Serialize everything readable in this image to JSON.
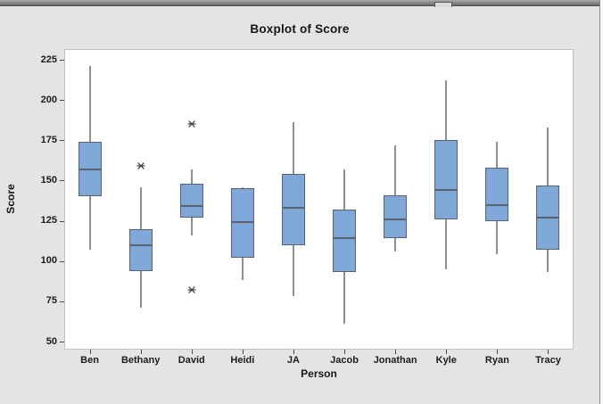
{
  "window": {
    "kind": "minitab-graph-window"
  },
  "colors": {
    "window_bg": "#e5e4e2",
    "plot_bg": "#ffffff",
    "plot_border": "#c3c3c3",
    "box_fill": "#7fa7d8",
    "box_border": "#57636e",
    "whisker": "#8f8f8f",
    "outlier": "#3f3f3f",
    "text": "#15161c"
  },
  "chart_data": {
    "type": "boxplot",
    "title": "Boxplot of Score",
    "xlabel": "Person",
    "ylabel": "Score",
    "grid": false,
    "legend": "none",
    "y_ticks": [
      225,
      200,
      175,
      150,
      125,
      100,
      75,
      50
    ],
    "ylim_visible": [
      45,
      232
    ],
    "categories": [
      "Ben",
      "Bethany",
      "David",
      "Heidi",
      "JA",
      "Jacob",
      "Jonathan",
      "Kyle",
      "Ryan",
      "Tracy"
    ],
    "boxes": [
      {
        "name": "Ben",
        "low": 107,
        "q1": 140,
        "median": 157,
        "q3": 174,
        "high": 221,
        "outliers": []
      },
      {
        "name": "Bethany",
        "low": 71,
        "q1": 94,
        "median": 110,
        "q3": 120,
        "high": 146,
        "outliers": [
          161
        ]
      },
      {
        "name": "David",
        "low": 116,
        "q1": 127,
        "median": 134,
        "q3": 148,
        "high": 157,
        "outliers": [
          187,
          84
        ]
      },
      {
        "name": "Heidi",
        "low": 88,
        "q1": 102,
        "median": 124,
        "q3": 145,
        "high": 146,
        "outliers": []
      },
      {
        "name": "JA",
        "low": 78,
        "q1": 110,
        "median": 133,
        "q3": 154,
        "high": 186,
        "outliers": []
      },
      {
        "name": "Jacob",
        "low": 61,
        "q1": 93,
        "median": 114,
        "q3": 132,
        "high": 157,
        "outliers": []
      },
      {
        "name": "Jonathan",
        "low": 106,
        "q1": 114,
        "median": 126,
        "q3": 141,
        "high": 172,
        "outliers": []
      },
      {
        "name": "Kyle",
        "low": 95,
        "q1": 126,
        "median": 144,
        "q3": 175,
        "high": 212,
        "outliers": []
      },
      {
        "name": "Ryan",
        "low": 104,
        "q1": 125,
        "median": 135,
        "q3": 158,
        "high": 174,
        "outliers": []
      },
      {
        "name": "Tracy",
        "low": 93,
        "q1": 107,
        "median": 127,
        "q3": 147,
        "high": 183,
        "outliers": []
      }
    ]
  }
}
